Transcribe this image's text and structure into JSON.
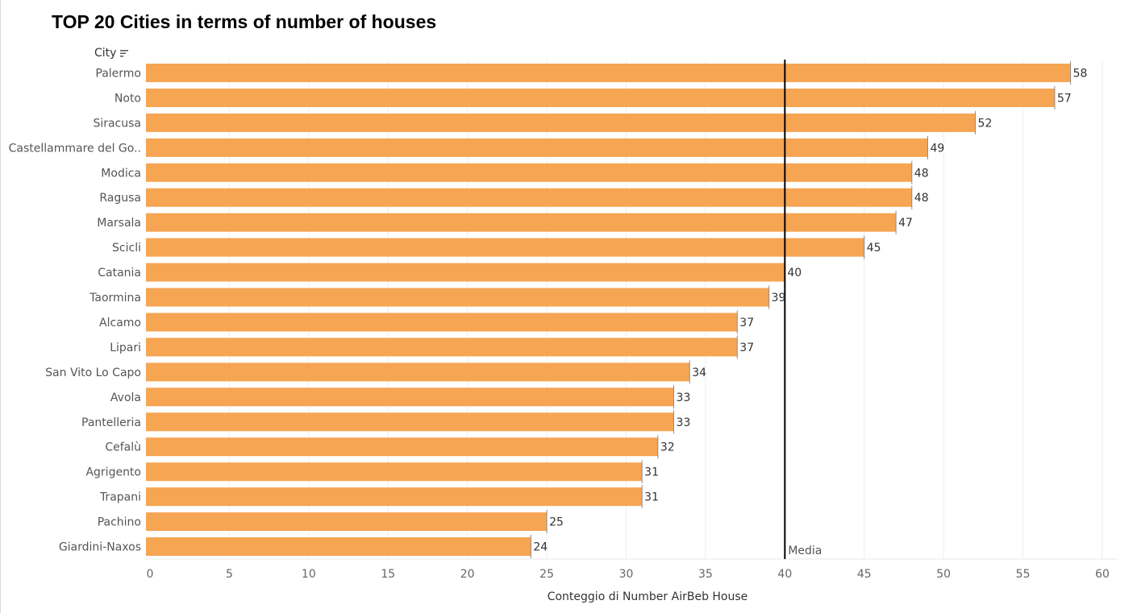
{
  "chart_data": {
    "type": "bar",
    "orientation": "horizontal",
    "title": "TOP 20 Cities in terms of number of houses",
    "row_header": "City",
    "xlabel": "Conteggio di Number AirBeb House",
    "categories": [
      "Palermo",
      "Noto",
      "Siracusa",
      "Castellammare del Go..",
      "Modica",
      "Ragusa",
      "Marsala",
      "Scicli",
      "Catania",
      "Taormina",
      "Alcamo",
      "Lipari",
      "San Vito Lo Capo",
      "Avola",
      "Pantelleria",
      "Cefalù",
      "Agrigento",
      "Trapani",
      "Pachino",
      "Giardini-Naxos"
    ],
    "values": [
      58,
      57,
      52,
      49,
      48,
      48,
      47,
      45,
      40,
      39,
      37,
      37,
      34,
      33,
      33,
      32,
      31,
      31,
      25,
      24
    ],
    "xlim": [
      0,
      60
    ],
    "ticks": [
      0,
      5,
      10,
      15,
      20,
      25,
      30,
      35,
      40,
      45,
      50,
      55,
      60
    ],
    "grid": true,
    "bar_color": "#F6A553",
    "reference_line": {
      "label": "Media",
      "value": 40,
      "color": "#000000"
    }
  }
}
